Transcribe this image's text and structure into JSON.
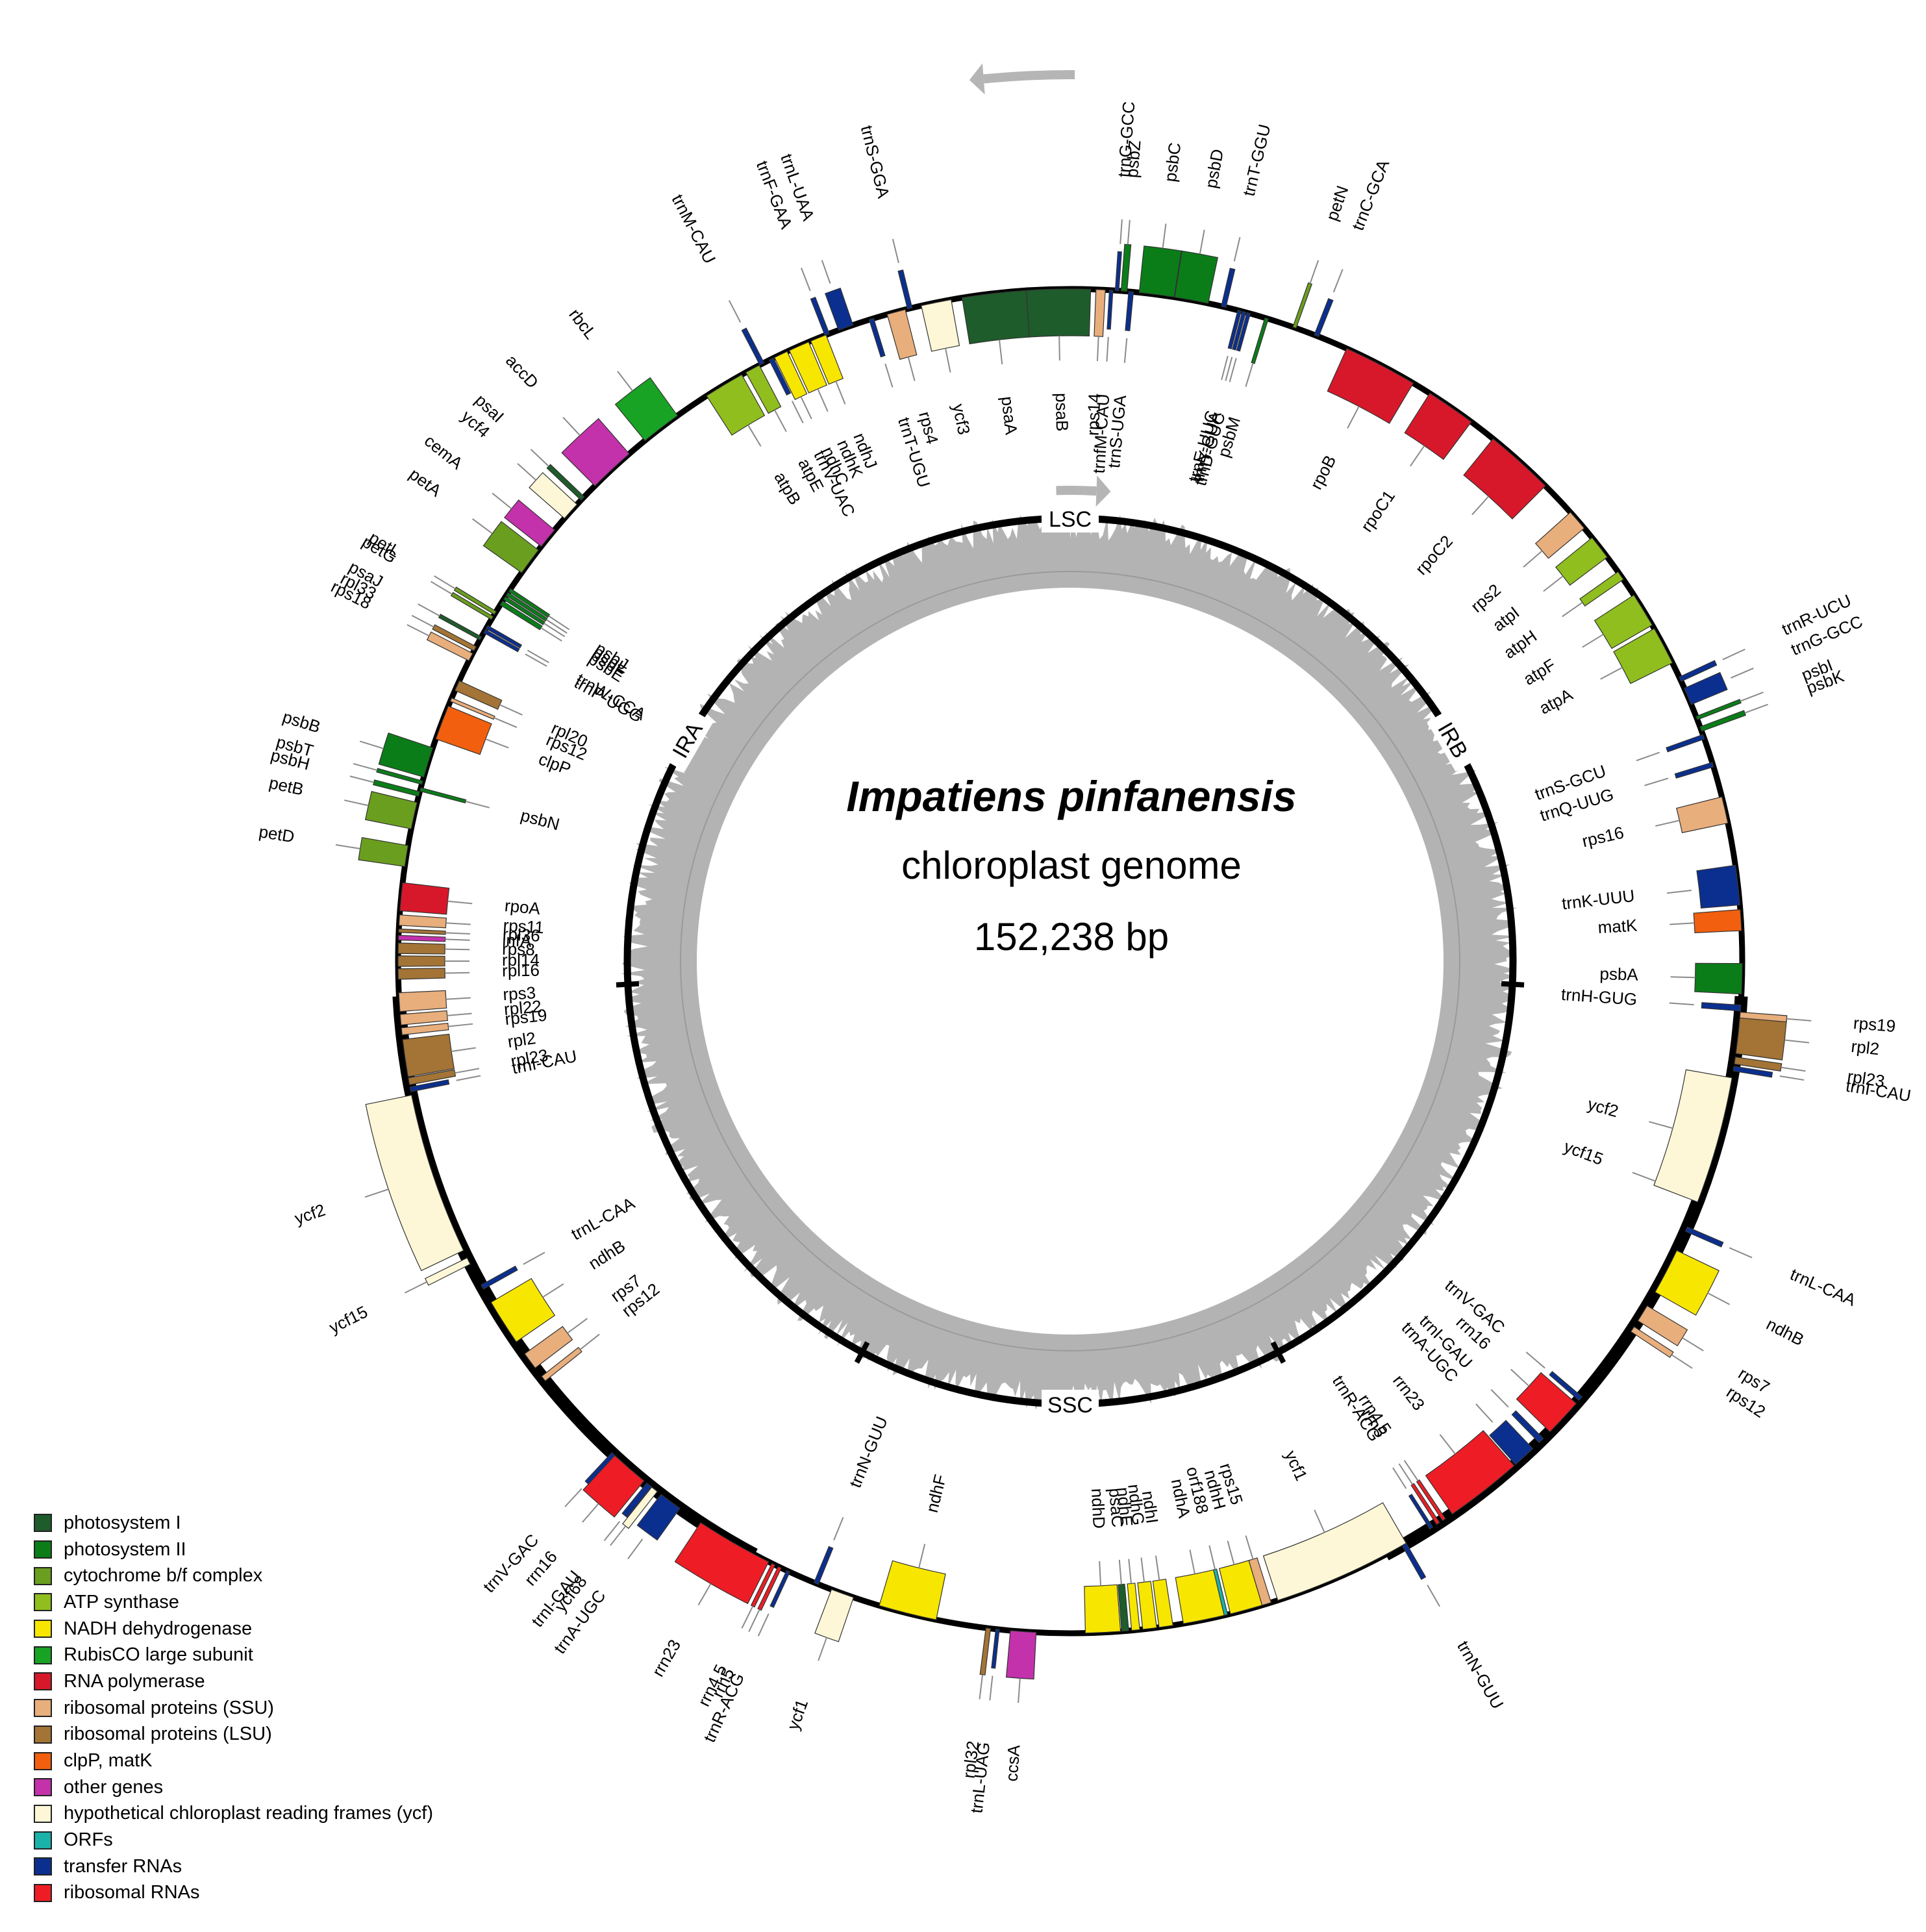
{
  "genome": {
    "species": "Impatiens pinfanensis",
    "subtitle": "chloroplast genome",
    "length_label": "152,238 bp"
  },
  "regions": [
    {
      "label": "LSC"
    },
    {
      "label": "IRB"
    },
    {
      "label": "SSC"
    },
    {
      "label": "IRA"
    }
  ],
  "legend": {
    "items": [
      {
        "label": "photosystem I",
        "color": "#1e5c2b"
      },
      {
        "label": "photosystem II",
        "color": "#0a7d19"
      },
      {
        "label": "cytochrome b/f complex",
        "color": "#6a9e1f"
      },
      {
        "label": "ATP synthase",
        "color": "#8fbe1e"
      },
      {
        "label": "NADH dehydrogenase",
        "color": "#f7e600"
      },
      {
        "label": "RubisCO large subunit",
        "color": "#18a324"
      },
      {
        "label": "RNA polymerase",
        "color": "#d7182a"
      },
      {
        "label": "ribosomal proteins (SSU)",
        "color": "#e8ae7c"
      },
      {
        "label": "ribosomal proteins (LSU)",
        "color": "#a37436"
      },
      {
        "label": "clpP, matK",
        "color": "#f25f0e"
      },
      {
        "label": "other genes",
        "color": "#c331ab"
      },
      {
        "label": "hypothetical chloroplast reading frames (ycf)",
        "color": "#fdf7d7"
      },
      {
        "label": "ORFs",
        "color": "#1bb2a9"
      },
      {
        "label": "transfer RNAs",
        "color": "#0b2f8e"
      },
      {
        "label": "ribosomal RNAs",
        "color": "#ee1c25"
      }
    ]
  },
  "genes": [
    {
      "name": "trnH-GUG",
      "a": 94,
      "w": 0.5,
      "c": "tRNA",
      "side": "in"
    },
    {
      "name": "psbA",
      "a": 91.5,
      "w": 2.6,
      "c": "ps2",
      "side": "in"
    },
    {
      "name": "matK",
      "a": 86.5,
      "w": 1.8,
      "c": "clp",
      "side": "in"
    },
    {
      "name": "trnK-UUU",
      "a": 83.5,
      "w": 3.4,
      "c": "tRNA",
      "side": "in"
    },
    {
      "name": "rps16",
      "a": 77,
      "w": 2.3,
      "c": "ssu",
      "side": "in"
    },
    {
      "name": "trnQ-UUG",
      "a": 73,
      "w": 0.4,
      "c": "tRNA",
      "side": "in"
    },
    {
      "name": "trnS-GCU",
      "a": 70.5,
      "w": 0.4,
      "c": "tRNA",
      "side": "in"
    },
    {
      "name": "psbK",
      "a": 69.8,
      "w": 0.4,
      "c": "ps2",
      "side": "out"
    },
    {
      "name": "psbI",
      "a": 68.8,
      "w": 0.3,
      "c": "ps2",
      "side": "out"
    },
    {
      "name": "trnG-GCC",
      "a": 66.8,
      "w": 1.5,
      "c": "tRNA",
      "side": "out"
    },
    {
      "name": "trnR-UCU",
      "a": 65.2,
      "w": 0.4,
      "c": "tRNA",
      "side": "out"
    },
    {
      "name": "atpA",
      "a": 62,
      "w": 3.3,
      "c": "atp",
      "side": "in"
    },
    {
      "name": "atpF",
      "a": 58.5,
      "w": 3,
      "c": "atp",
      "side": "in"
    },
    {
      "name": "atpH",
      "a": 55,
      "w": 0.8,
      "c": "atp",
      "side": "in"
    },
    {
      "name": "atpI",
      "a": 52,
      "w": 2.1,
      "c": "atp",
      "side": "in"
    },
    {
      "name": "rps2",
      "a": 49,
      "w": 1.8,
      "c": "ssu",
      "side": "in"
    },
    {
      "name": "rpoC2",
      "a": 42,
      "w": 6,
      "c": "rpo",
      "side": "in"
    },
    {
      "name": "rpoC1",
      "a": 34.5,
      "w": 4.3,
      "c": "rpo",
      "side": "in"
    },
    {
      "name": "rpoB",
      "a": 27.5,
      "w": 6.4,
      "c": "rpo",
      "side": "in"
    },
    {
      "name": "trnC-GCA",
      "a": 21.5,
      "w": 0.4,
      "c": "tRNA",
      "side": "out"
    },
    {
      "name": "petN",
      "a": 19.5,
      "w": 0.3,
      "c": "cyt",
      "side": "out"
    },
    {
      "name": "psbM",
      "a": 17,
      "w": 0.3,
      "c": "ps2",
      "side": "in"
    },
    {
      "name": "trnD-GUC",
      "a": 15.4,
      "w": 0.3,
      "c": "tRNA",
      "side": "in"
    },
    {
      "name": "trnY-GUA",
      "a": 15,
      "w": 0.3,
      "c": "tRNA",
      "side": "in"
    },
    {
      "name": "trnE-UUC",
      "a": 14.6,
      "w": 0.3,
      "c": "tRNA",
      "side": "in"
    },
    {
      "name": "trnT-GGU",
      "a": 13.2,
      "w": 0.4,
      "c": "tRNA",
      "side": "out"
    },
    {
      "name": "psbD",
      "a": 10.4,
      "w": 2.9,
      "c": "ps2",
      "side": "out"
    },
    {
      "name": "psbC",
      "a": 7.4,
      "w": 3,
      "c": "ps2",
      "side": "out"
    },
    {
      "name": "trnS-UGA",
      "a": 5.2,
      "w": 0.4,
      "c": "tRNA",
      "side": "in"
    },
    {
      "name": "psbZ",
      "a": 4.6,
      "w": 0.5,
      "c": "ps2",
      "side": "out"
    },
    {
      "name": "trnG-GCC",
      "a": 4,
      "w": 0.3,
      "c": "tRNA",
      "side": "out"
    },
    {
      "name": "trnfM-CAU",
      "a": 3.5,
      "w": 0.3,
      "c": "tRNA",
      "side": "in"
    },
    {
      "name": "rps14",
      "a": 2.6,
      "w": 0.8,
      "c": "ssu",
      "side": "in"
    },
    {
      "name": "psaB",
      "a": -1,
      "w": 5.5,
      "c": "ps1",
      "side": "in"
    },
    {
      "name": "psaA",
      "a": -6.5,
      "w": 5.5,
      "c": "ps1",
      "side": "in"
    },
    {
      "name": "ycf3",
      "a": -11.5,
      "w": 2.6,
      "c": "ycf",
      "side": "in"
    },
    {
      "name": "trnS-GGA",
      "a": -13.8,
      "w": 0.4,
      "c": "tRNA",
      "side": "out"
    },
    {
      "name": "rps4",
      "a": -15,
      "w": 1.6,
      "c": "ssu",
      "side": "in"
    },
    {
      "name": "trnT-UGU",
      "a": -17.2,
      "w": 0.4,
      "c": "tRNA",
      "side": "in"
    },
    {
      "name": "trnL-UAA",
      "a": -19.5,
      "w": 1.3,
      "c": "tRNA",
      "side": "out"
    },
    {
      "name": "trnF-GAA",
      "a": -21.2,
      "w": 0.4,
      "c": "tRNA",
      "side": "out"
    },
    {
      "name": "ndhJ",
      "a": -22,
      "w": 1.4,
      "c": "ndh",
      "side": "in"
    },
    {
      "name": "ndhK",
      "a": -23.8,
      "w": 1.8,
      "c": "ndh",
      "side": "in"
    },
    {
      "name": "ndhC",
      "a": -25.5,
      "w": 1.2,
      "c": "ndh",
      "side": "in"
    },
    {
      "name": "trnV-UAC",
      "a": -26.4,
      "w": 0.4,
      "c": "tRNA",
      "side": "in"
    },
    {
      "name": "trnM-CAU",
      "a": -27.3,
      "w": 0.4,
      "c": "tRNA",
      "side": "out"
    },
    {
      "name": "atpE",
      "a": -28.2,
      "w": 1.3,
      "c": "atp",
      "side": "in"
    },
    {
      "name": "atpB",
      "a": -31,
      "w": 3.5,
      "c": "atp",
      "side": "in"
    },
    {
      "name": "rbcL",
      "a": -37.5,
      "w": 3.5,
      "c": "rbc",
      "side": "out"
    },
    {
      "name": "accD",
      "a": -43,
      "w": 4,
      "c": "oth",
      "side": "out"
    },
    {
      "name": "psaI",
      "a": -46.5,
      "w": 0.4,
      "c": "ps1",
      "side": "out"
    },
    {
      "name": "ycf4",
      "a": -48,
      "w": 1.6,
      "c": "ycf",
      "side": "out"
    },
    {
      "name": "cemA",
      "a": -51,
      "w": 1.8,
      "c": "oth",
      "side": "out"
    },
    {
      "name": "petA",
      "a": -53.5,
      "w": 2.4,
      "c": "cyt",
      "side": "out"
    },
    {
      "name": "psbJ",
      "a": -56.5,
      "w": 0.3,
      "c": "ps2",
      "side": "in"
    },
    {
      "name": "psbL",
      "a": -56.9,
      "w": 0.3,
      "c": "ps2",
      "side": "in"
    },
    {
      "name": "psbF",
      "a": -57.3,
      "w": 0.3,
      "c": "ps2",
      "side": "in"
    },
    {
      "name": "psbE",
      "a": -57.8,
      "w": 0.4,
      "c": "ps2",
      "side": "in"
    },
    {
      "name": "petL",
      "a": -58.8,
      "w": 0.3,
      "c": "cyt",
      "side": "out"
    },
    {
      "name": "petG",
      "a": -59.3,
      "w": 0.3,
      "c": "cyt",
      "side": "out"
    },
    {
      "name": "trnW-CCA",
      "a": -60.2,
      "w": 0.3,
      "c": "tRNA",
      "side": "in"
    },
    {
      "name": "trnP-UGG",
      "a": -60.6,
      "w": 0.3,
      "c": "tRNA",
      "side": "in"
    },
    {
      "name": "psaJ",
      "a": -61.3,
      "w": 0.3,
      "c": "ps1",
      "side": "out"
    },
    {
      "name": "rpl33",
      "a": -62.3,
      "w": 0.4,
      "c": "lsu",
      "side": "out"
    },
    {
      "name": "rps18",
      "a": -63.1,
      "w": 0.7,
      "c": "ssu",
      "side": "out"
    },
    {
      "name": "rpl20",
      "a": -65.8,
      "w": 0.9,
      "c": "lsu",
      "side": "in"
    },
    {
      "name": "rps12",
      "a": -67.1,
      "w": 0.3,
      "c": "ssu",
      "side": "in"
    },
    {
      "name": "clpP",
      "a": -69.2,
      "w": 3,
      "c": "clp",
      "side": "in"
    },
    {
      "name": "psbB",
      "a": -72.8,
      "w": 2.6,
      "c": "ps2",
      "side": "out"
    },
    {
      "name": "psbT",
      "a": -74.6,
      "w": 0.3,
      "c": "ps2",
      "side": "out"
    },
    {
      "name": "psbN",
      "a": -75.2,
      "w": 0.3,
      "c": "ps2",
      "side": "in"
    },
    {
      "name": "psbH",
      "a": -75.6,
      "w": 0.4,
      "c": "ps2",
      "side": "out"
    },
    {
      "name": "petB",
      "a": -77.5,
      "w": 2.3,
      "c": "cyt",
      "side": "out"
    },
    {
      "name": "petD",
      "a": -81,
      "w": 1.8,
      "c": "cyt",
      "side": "out"
    },
    {
      "name": "rpoA",
      "a": -84.5,
      "w": 2.4,
      "c": "rpo",
      "side": "in"
    },
    {
      "name": "rps11",
      "a": -86.5,
      "w": 0.9,
      "c": "ssu",
      "side": "in"
    },
    {
      "name": "rpl36",
      "a": -87.4,
      "w": 0.3,
      "c": "lsu",
      "side": "in"
    },
    {
      "name": "infA",
      "a": -88,
      "w": 0.4,
      "c": "oth",
      "side": "in"
    },
    {
      "name": "rps8",
      "a": -88.9,
      "w": 0.9,
      "c": "lsu",
      "side": "in"
    },
    {
      "name": "rpl14",
      "a": -90,
      "w": 0.9,
      "c": "lsu",
      "side": "in"
    },
    {
      "name": "rpl16",
      "a": -91.1,
      "w": 0.9,
      "c": "lsu",
      "side": "in"
    },
    {
      "name": "rps3",
      "a": -93.5,
      "w": 1.6,
      "c": "ssu",
      "side": "in"
    },
    {
      "name": "rpl22",
      "a": -95,
      "w": 0.9,
      "c": "ssu",
      "side": "in"
    },
    {
      "name": "rps19",
      "a": -96,
      "w": 0.6,
      "c": "ssu",
      "side": "in"
    },
    {
      "name": "rpl2",
      "a": -98.3,
      "w": 3.2,
      "c": "lsu",
      "side": "in"
    },
    {
      "name": "rpl23",
      "a": -100.3,
      "w": 0.6,
      "c": "lsu",
      "side": "in"
    },
    {
      "name": "trnI-CAU",
      "a": -101,
      "w": 0.4,
      "c": "tRNA",
      "side": "in"
    },
    {
      "name": "ycf2",
      "a": -108.5,
      "w": 14,
      "c": "ycf",
      "side": "out"
    },
    {
      "name": "ycf15",
      "a": -116.5,
      "w": 0.6,
      "c": "ycf",
      "side": "out"
    },
    {
      "name": "trnL-CAA",
      "a": -119,
      "w": 0.4,
      "c": "tRNA",
      "side": "in"
    },
    {
      "name": "ndhB",
      "a": -122.5,
      "w": 4,
      "c": "ndh",
      "side": "in"
    },
    {
      "name": "rps7",
      "a": -126.5,
      "w": 1.5,
      "c": "ssu",
      "side": "in"
    },
    {
      "name": "rps12",
      "a": -128.4,
      "w": 0.5,
      "c": "ssu",
      "side": "in"
    },
    {
      "name": "trnV-GAC",
      "a": -137.2,
      "w": 0.4,
      "c": "tRNA",
      "side": "out"
    },
    {
      "name": "rrn16",
      "a": -139,
      "w": 3.3,
      "c": "rrn",
      "side": "out"
    },
    {
      "name": "trnI-GAU",
      "a": -141.2,
      "w": 0.5,
      "c": "tRNA",
      "side": "out"
    },
    {
      "name": "ycf68",
      "a": -141.8,
      "w": 0.6,
      "c": "ycf",
      "side": "out"
    },
    {
      "name": "trnA-UGC",
      "a": -143.5,
      "w": 2,
      "c": "tRNA",
      "side": "out"
    },
    {
      "name": "rrn23",
      "a": -150,
      "w": 6.7,
      "c": "rrn",
      "side": "out"
    },
    {
      "name": "rrn4.5",
      "a": -153.8,
      "w": 0.3,
      "c": "rrn",
      "side": "out"
    },
    {
      "name": "rrn5",
      "a": -154.4,
      "w": 0.3,
      "c": "rrn",
      "side": "out"
    },
    {
      "name": "trnR-ACG",
      "a": -155.2,
      "w": 0.3,
      "c": "tRNA",
      "side": "out"
    },
    {
      "name": "trnN-GUU",
      "a": -157.8,
      "w": 0.4,
      "c": "tRNA",
      "side": "in"
    },
    {
      "name": "ycf1",
      "a": -160.2,
      "w": 2,
      "c": "ycf",
      "side": "out"
    },
    {
      "name": "ndhF",
      "a": -166,
      "w": 5,
      "c": "ndh",
      "side": "in"
    },
    {
      "name": "rpl32",
      "a": -173,
      "w": 0.4,
      "c": "lsu",
      "side": "out"
    },
    {
      "name": "trnL-UAG",
      "a": -173.8,
      "w": 0.3,
      "c": "tRNA",
      "side": "out"
    },
    {
      "name": "ccsA",
      "a": -176,
      "w": 2.2,
      "c": "oth",
      "side": "out"
    },
    {
      "name": "ndhD",
      "a": 177.2,
      "w": 3,
      "c": "ndh",
      "side": "in"
    },
    {
      "name": "psaC",
      "a": 175.3,
      "w": 0.6,
      "c": "ps1",
      "side": "in"
    },
    {
      "name": "ndhE",
      "a": 174.4,
      "w": 0.7,
      "c": "ndh",
      "side": "in"
    },
    {
      "name": "ndhG",
      "a": 173.2,
      "w": 1.2,
      "c": "ndh",
      "side": "in"
    },
    {
      "name": "ndhI",
      "a": 171.8,
      "w": 1.2,
      "c": "ndh",
      "side": "in"
    },
    {
      "name": "ndhA",
      "a": 168.5,
      "w": 3.6,
      "c": "ndh",
      "side": "in"
    },
    {
      "name": "orf188",
      "a": 166.6,
      "w": 0.3,
      "c": "orf",
      "side": "in"
    },
    {
      "name": "ndhH",
      "a": 164.8,
      "w": 2.8,
      "c": "ndh",
      "side": "in"
    },
    {
      "name": "rps15",
      "a": 163,
      "w": 0.8,
      "c": "ssu",
      "side": "in"
    },
    {
      "name": "ycf1",
      "a": 156,
      "w": 12,
      "c": "ycf",
      "side": "in"
    },
    {
      "name": "trnN-GUU",
      "a": 150.2,
      "w": 0.4,
      "c": "tRNA",
      "side": "out"
    },
    {
      "name": "trnR-ACG",
      "a": 147.5,
      "w": 0.3,
      "c": "tRNA",
      "side": "in"
    },
    {
      "name": "rrn5",
      "a": 146.8,
      "w": 0.3,
      "c": "rrn",
      "side": "in"
    },
    {
      "name": "rrn4.5",
      "a": 146.2,
      "w": 0.3,
      "c": "rrn",
      "side": "in"
    },
    {
      "name": "rrn23",
      "a": 142,
      "w": 6.7,
      "c": "rrn",
      "side": "in"
    },
    {
      "name": "trnA-UGC",
      "a": 137.5,
      "w": 2,
      "c": "tRNA",
      "side": "in"
    },
    {
      "name": "trnI-GAU",
      "a": 135.5,
      "w": 0.5,
      "c": "tRNA",
      "side": "in"
    },
    {
      "name": "rrn16",
      "a": 132.8,
      "w": 3.3,
      "c": "rrn",
      "side": "in"
    },
    {
      "name": "trnV-GAC",
      "a": 130.6,
      "w": 0.4,
      "c": "tRNA",
      "side": "in"
    },
    {
      "name": "rps12",
      "a": 123.2,
      "w": 0.5,
      "c": "ssu",
      "side": "out"
    },
    {
      "name": "rps7",
      "a": 121.6,
      "w": 1.5,
      "c": "ssu",
      "side": "out"
    },
    {
      "name": "ndhB",
      "a": 117.5,
      "w": 4,
      "c": "ndh",
      "side": "out"
    },
    {
      "name": "trnL-CAA",
      "a": 113.5,
      "w": 0.4,
      "c": "tRNA",
      "side": "out"
    },
    {
      "name": "ycf15",
      "a": 110.6,
      "w": 0.6,
      "c": "ycf",
      "side": "in"
    },
    {
      "name": "ycf2",
      "a": 105.5,
      "w": 11,
      "c": "ycf",
      "side": "in"
    },
    {
      "name": "trnI-CAU",
      "a": 99.2,
      "w": 0.4,
      "c": "tRNA",
      "side": "out"
    },
    {
      "name": "rpl23",
      "a": 98.5,
      "w": 0.6,
      "c": "lsu",
      "side": "out"
    },
    {
      "name": "rpl2",
      "a": 96.3,
      "w": 3.2,
      "c": "lsu",
      "side": "out"
    },
    {
      "name": "rps19",
      "a": 94.6,
      "w": 0.5,
      "c": "ssu",
      "side": "out"
    }
  ]
}
